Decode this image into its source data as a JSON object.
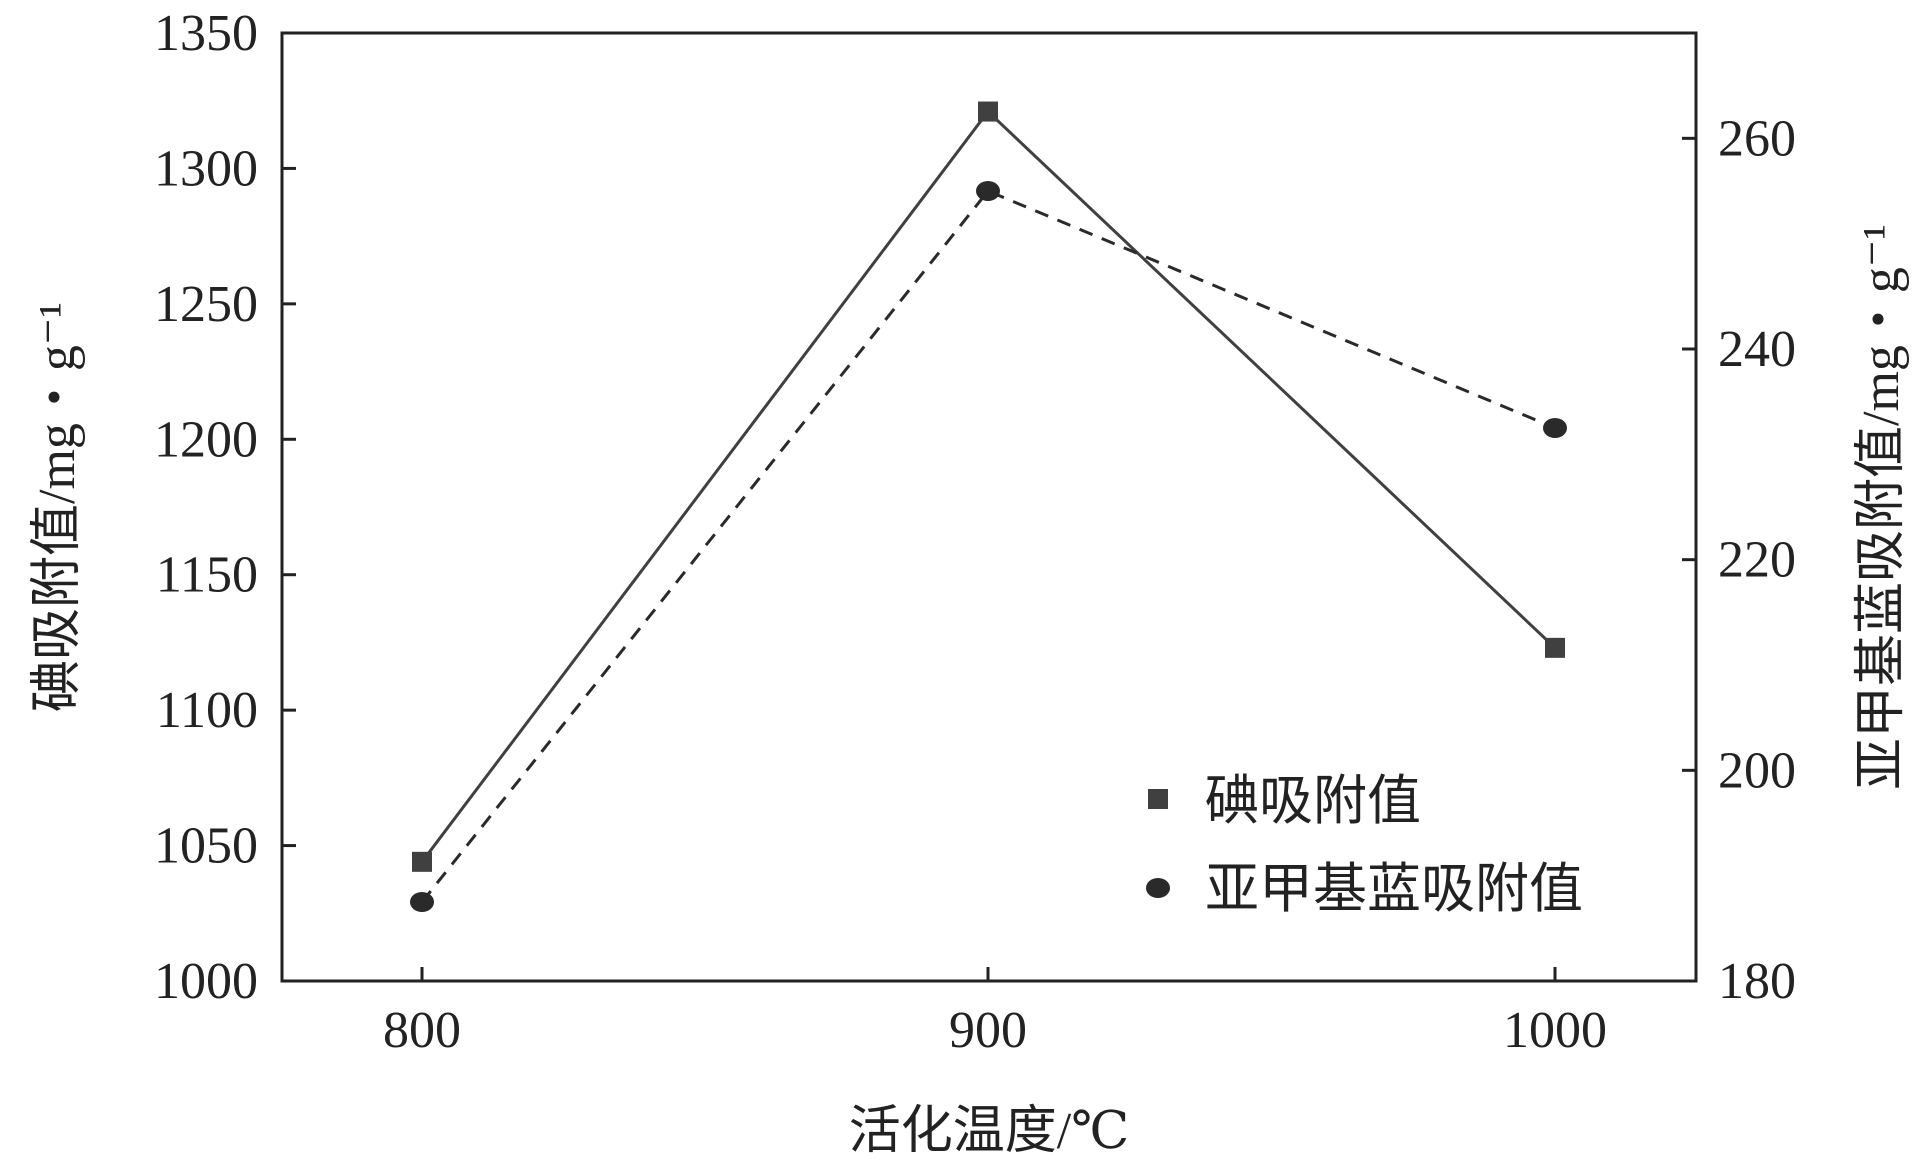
{
  "chart_data": {
    "type": "line",
    "x_categories": [
      "800",
      "900",
      "1000"
    ],
    "xlabel": "活化温度/℃",
    "ylabel_left": "碘吸附值/mg・g⁻¹",
    "ylabel_right": "亚甲基蓝吸附值/mg・g⁻¹",
    "ylim_left": [
      1000,
      1350
    ],
    "ylim_right": [
      180,
      270
    ],
    "yticks_left": [
      1000,
      1050,
      1100,
      1150,
      1200,
      1250,
      1300,
      1350
    ],
    "yticks_right": [
      180,
      200,
      220,
      240,
      260
    ],
    "legend_position": "lower-right",
    "grid": false,
    "series": [
      {
        "name": "碘吸附值",
        "axis": "left",
        "marker": "square",
        "line_style": "solid",
        "color": "#404040",
        "values": [
          1044,
          1321,
          1123
        ]
      },
      {
        "name": "亚甲基蓝吸附值",
        "axis": "right",
        "marker": "circle",
        "line_style": "dashed",
        "color": "#2a2a2a",
        "values": [
          187.5,
          255,
          232.5
        ]
      }
    ]
  }
}
